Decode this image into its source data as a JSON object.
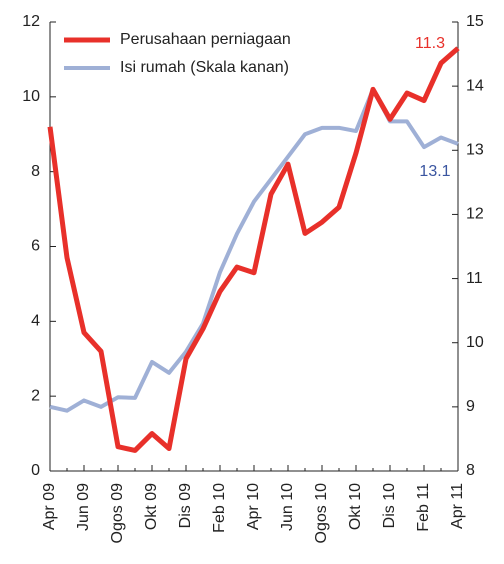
{
  "chart_data": {
    "type": "line",
    "categories": [
      "Apr 09",
      null,
      "Jun 09",
      null,
      "Ogos 09",
      null,
      "Okt 09",
      null,
      "Dis 09",
      null,
      "Feb 10",
      null,
      "Apr 10",
      null,
      "Jun 10",
      null,
      "Ogos 10",
      null,
      "Okt 10",
      null,
      "Dis 10",
      null,
      "Feb 11",
      null,
      "Apr 11"
    ],
    "series": [
      {
        "name": "Perusahaan perniagaan",
        "color": "#e8302a",
        "values": [
          9.2,
          5.7,
          3.7,
          3.2,
          0.65,
          0.55,
          1.0,
          0.6,
          3.0,
          3.8,
          4.8,
          5.45,
          5.3,
          7.4,
          8.2,
          6.35,
          6.65,
          7.05,
          8.5,
          10.2,
          9.4,
          10.1,
          9.9,
          10.9,
          11.3
        ]
      },
      {
        "name": "Isi rumah (Skala kanan)",
        "color": "#9fb0d6",
        "axis": "y2",
        "values": [
          9.0,
          8.94,
          9.1,
          9.0,
          9.15,
          9.14,
          9.7,
          9.53,
          9.86,
          10.3,
          11.1,
          11.7,
          12.2,
          12.55,
          12.9,
          13.25,
          13.35,
          13.35,
          13.3,
          13.95,
          13.45,
          13.45,
          13.05,
          13.2,
          13.1
        ]
      }
    ],
    "annotations": [
      {
        "text": "11.3",
        "color": "#e8302a"
      },
      {
        "text": "13.1",
        "color": "#3a55a0"
      }
    ],
    "ylim": [
      0,
      12
    ],
    "yticks": [
      0,
      2,
      4,
      6,
      8,
      10,
      12
    ],
    "y2lim": [
      8,
      15
    ],
    "y2ticks": [
      8,
      9,
      10,
      11,
      12,
      13,
      14,
      15
    ],
    "legend": "upper left"
  }
}
